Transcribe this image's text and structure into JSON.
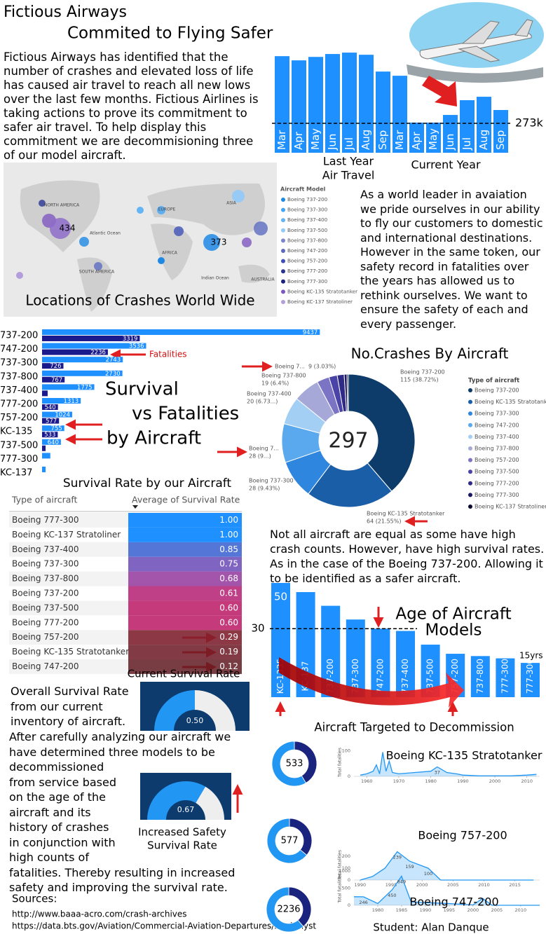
{
  "header": {
    "title": "Fictious Airways",
    "subtitle": "Commited to Flying Safer"
  },
  "intro": "Fictious Airways has identified that the number of crashes and elevated loss of life has caused air travel to reach all new lows over the last few months. Fictious Airlines is taking actions to prove its commitment to safer air travel. To help display this commitment we are decommisioning three of our model aircraft.",
  "mission": "As a world leader in avaiation we pride ourselves in our ability to fly our customers to domestic and international destinations. However in the same token, our safety record in fatalities over the years has allowed us to rethink ourselves. We want to ensure the safety of each and every passenger.",
  "not_all": "Not all aircraft are equal as some have high crash counts. However, have high survival rates. As in the case of the Boeing 737-200. Allowing it to be identified as a safer aircraft.",
  "overall": "Overall Survival Rate from our current inventory of aircraft.",
  "decommission": "After carefully analyzing our aircraft we have determined three models to be decommissioned from service based on the age of the aircraft and its history of crashes in conjunction with high counts of fatalities. Thereby resulting in increased safety and improving the survival rate.",
  "map": {
    "title": "Locations of Crashes World Wide",
    "legend_title": "Aircraft Model",
    "legend": [
      "Boeing 737-200",
      "Boeing 737-300",
      "Boeing 737-400",
      "Boeing 737-500",
      "Boeing 737-800",
      "Boeing 747-200",
      "Boeing 757-200",
      "Boeing 777-200",
      "Boeing 777-300",
      "Boeing KC-135 Stratotanker",
      "Boeing KC-137 Stratoliner"
    ],
    "legend_colors": [
      "#1e88e5",
      "#42a5f5",
      "#64b5f6",
      "#90caf9",
      "#7986cb",
      "#5c6bc0",
      "#3f51b5",
      "#283593",
      "#1a237e",
      "#7e57c2",
      "#b39ddb"
    ],
    "regions": [
      "NORTH AMERICA",
      "EUROPE",
      "ASIA",
      "Atlantic Ocean",
      "AFRICA",
      "SOUTH AMERICA",
      "Indian Ocean",
      "AUSTRALIA"
    ],
    "bubble_labels": [
      434,
      373
    ]
  },
  "chart_data": [
    {
      "type": "bar",
      "categories": [
        "Mar",
        "Apr",
        "May",
        "Jun",
        "Jul",
        "Aug",
        "Sep",
        "Mar",
        "Apr",
        "May",
        "Jun",
        "Jul",
        "Aug",
        "Sep"
      ],
      "values": [
        897,
        858,
        890,
        917,
        930,
        910,
        754,
        715,
        280,
        280,
        351,
        488,
        520,
        397
      ],
      "color": "#1e90ff",
      "ylim": [
        0,
        950
      ],
      "reference": {
        "value": 273,
        "label": "273k"
      },
      "group_labels": [
        [
          "Last Year",
          "Air Travel"
        ],
        [
          "Current Year"
        ]
      ]
    },
    {
      "type": "hbar",
      "title_lines": [
        "Survival",
        "vs Fatalities",
        "by Aircraft"
      ],
      "annotation": "Fatalities",
      "categories": [
        "737-200",
        "747-200",
        "737-300",
        "737-800",
        "737-400",
        "777-200",
        "757-200",
        "KC-135",
        "737-500",
        "777-300",
        "KC-137"
      ],
      "series": [
        {
          "color": "#1e90ff",
          "values": [
            9437,
            3536,
            2743,
            2730,
            1775,
            1313,
            1024,
            755,
            640,
            280,
            120
          ],
          "value_labels": [
            "9437",
            "3536",
            "2743",
            "2730",
            "1775",
            "1313",
            "1024",
            "755",
            "640",
            null,
            null
          ]
        },
        {
          "color": "#1a1a8c",
          "values": [
            3319,
            2236,
            726,
            767,
            190,
            540,
            577,
            533,
            120,
            null,
            null
          ],
          "value_labels": [
            "3319",
            "2236",
            "726",
            "767",
            null,
            "540",
            "577",
            "533",
            null,
            null,
            null
          ]
        }
      ],
      "xlim": [
        0,
        10000
      ]
    },
    {
      "type": "donut",
      "title": "No.Crashes By Aircraft",
      "total": 297,
      "legend_title": "Type of aircraft",
      "categories": [
        "Boeing 737-200",
        "Boeing KC-135 Stratotanker",
        "Boeing 737-300",
        "Boeing 747-200",
        "Boeing 737-400",
        "Boeing 737-800",
        "Boeing 757-200",
        "Boeing 737-500",
        "Boeing 777-200",
        "Boeing 777-300",
        "Boeing KC-137 Stratoliner"
      ],
      "values": [
        115,
        64,
        28,
        28,
        20,
        19,
        9,
        6,
        5,
        2,
        1
      ],
      "colors": [
        "#0d3c6b",
        "#1a5ea8",
        "#2e86de",
        "#5aa9ef",
        "#a3cff5",
        "#a6a9d8",
        "#7b73c4",
        "#4b44a8",
        "#2e2a85",
        "#1b1862",
        "#0a0a30"
      ],
      "label_names": [
        "Boeing 737-200",
        "Boeing KC-135 Stratotanker",
        "Boeing 737-300",
        "Boeing 7...",
        "Boeing 737-400",
        "Boeing 737-800",
        "Boeing 7...",
        null,
        null,
        null,
        null
      ],
      "value_labels": [
        "115 (38.72%)",
        "64 (21.55%)",
        "28 (9.43%)",
        "28 (9...)",
        "20 (6.73...)",
        "19 (6.4%)",
        "9 (3.03%)",
        null,
        null,
        null,
        null
      ]
    },
    {
      "type": "table",
      "title": "Survival Rate by our Aircraft",
      "columns": [
        "Type of aircraft",
        "Average of Survival Rate"
      ],
      "categories": [
        "Boeing 777-300",
        "Boeing KC-137 Stratoliner",
        "Boeing 737-400",
        "Boeing 737-300",
        "Boeing 737-800",
        "Boeing 737-200",
        "Boeing 737-500",
        "Boeing 777-200",
        "Boeing 757-200",
        "Boeing KC-135 Stratotanker",
        "Boeing 747-200"
      ],
      "values": [
        1,
        1,
        0.85,
        0.75,
        0.68,
        0.61,
        0.6,
        0.6,
        0.29,
        0.19,
        0.12
      ],
      "value_labels": [
        "1.00",
        "1.00",
        "0.85",
        "0.75",
        "0.68",
        "0.61",
        "0.60",
        "0.60",
        "0.29",
        "0.19",
        "0.12"
      ],
      "colors": [
        "#1e90ff",
        "#1e90ff",
        "#4f73d6",
        "#7a5dbf",
        "#9e4aa6",
        "#bb3280",
        "#c02c70",
        "#c02c70",
        "#7d1e2b",
        "#6e1c27",
        "#601a22"
      ]
    },
    {
      "type": "gauge",
      "title_lines": [
        "Current Survival Rate"
      ],
      "value": 0.5,
      "value_label": "0.50",
      "ylim": [
        0,
        1
      ],
      "color": "#2196f3"
    },
    {
      "type": "gauge",
      "title_lines": [
        "Increased Safety",
        "Survival Rate"
      ],
      "value": 0.67,
      "value_label": "0.67",
      "ylim": [
        0,
        1
      ],
      "color": "#2196f3"
    },
    {
      "type": "vbar",
      "title_lines": [
        "Age of Aircraft",
        "Models"
      ],
      "annotation": "Aircraft Targeted to Decommission",
      "categories": [
        "KC-1335",
        "KC-137",
        "737-200",
        "737-300",
        "747-200",
        "737-400",
        "737-500",
        "757-200",
        "737-800",
        "777-300",
        "777-300"
      ],
      "values": [
        50,
        46,
        40,
        34,
        30,
        29,
        23,
        19,
        18,
        17,
        15
      ],
      "value_labels": [
        "50",
        null,
        null,
        null,
        null,
        null,
        null,
        null,
        null,
        null,
        "15yrs"
      ],
      "ylim": [
        0,
        50
      ],
      "reference": 30,
      "color": "#1e90ff"
    },
    {
      "type": "line",
      "title": "Boeing KC-135 Stratotanker",
      "ylabel": "Total fatalities",
      "x": [
        1958,
        1960,
        1962,
        1963,
        1964,
        1965,
        1966,
        1967,
        1968,
        1970,
        1975,
        1980,
        1982,
        1985,
        1988,
        1990,
        1995,
        2000,
        2005,
        2010,
        2013
      ],
      "values": [
        5,
        10,
        20,
        45,
        10,
        95,
        20,
        60,
        15,
        10,
        15,
        20,
        37,
        15,
        10,
        5,
        2,
        2,
        2,
        5,
        8
      ],
      "value_labels": [
        null,
        null,
        null,
        null,
        null,
        null,
        null,
        null,
        null,
        null,
        null,
        null,
        "37",
        null,
        null,
        null,
        null,
        null,
        null,
        null,
        null
      ],
      "xlim": [
        1956,
        2014
      ],
      "xticks": [
        1960,
        1970,
        1980,
        1990,
        2000,
        2010
      ],
      "ylim": [
        0,
        110
      ],
      "yticks": [
        0,
        100
      ],
      "color": "#2196f3",
      "donut": {
        "values": [
          533,
          755
        ],
        "colors": [
          "#1a237e",
          "#2196f3"
        ]
      }
    },
    {
      "type": "line",
      "title": "Boeing 757-200",
      "ylabel": "Total fatalities",
      "x": [
        1990,
        1992,
        1994,
        1996,
        1998,
        2001,
        2003,
        2006,
        2010,
        2015,
        2018
      ],
      "values": [
        0,
        30,
        100,
        239,
        159,
        100,
        0,
        0,
        0,
        0,
        0
      ],
      "value_labels": [
        null,
        null,
        null,
        "239",
        "159",
        "100",
        null,
        null,
        null,
        null,
        null
      ],
      "xlim": [
        1989,
        2019
      ],
      "xticks": [
        1990,
        1995,
        2000,
        2005,
        2010,
        2015
      ],
      "ylim": [
        0,
        260
      ],
      "yticks": [
        0,
        100,
        200
      ],
      "color": "#2196f3",
      "donut": {
        "values": [
          577,
          1024
        ],
        "colors": [
          "#1a237e",
          "#2196f3"
        ]
      }
    },
    {
      "type": "line",
      "title": "Boeing 747-200",
      "ylabel": "Total fatalities",
      "x": [
        1975,
        1977,
        1980,
        1983,
        1985,
        1987,
        1990,
        1995,
        2000,
        2002,
        2004,
        2010,
        2014
      ],
      "values": [
        250,
        246,
        50,
        450,
        849,
        100,
        80,
        50,
        10,
        200,
        0,
        0,
        0
      ],
      "value_labels": [
        null,
        "246",
        null,
        "450",
        "849",
        null,
        null,
        null,
        null,
        null,
        null,
        null,
        null
      ],
      "xlim": [
        1975,
        2014
      ],
      "xticks": [
        1980,
        1985,
        1990,
        1995,
        2000,
        2005,
        2010
      ],
      "ylim": [
        0,
        1000
      ],
      "yticks": [
        0,
        500,
        1000
      ],
      "color": "#2196f3",
      "donut": {
        "values": [
          2236,
          3536
        ],
        "colors": [
          "#1a237e",
          "#2196f3"
        ]
      }
    }
  ],
  "sources": {
    "title": "Sources:",
    "links": [
      "http://www.baaa-acro.com/crash-archives",
      "https://data.bts.gov/Aviation/Commercial-Aviation-Departures/bpqk-hyst"
    ]
  },
  "student": "Student: Alan Danque"
}
